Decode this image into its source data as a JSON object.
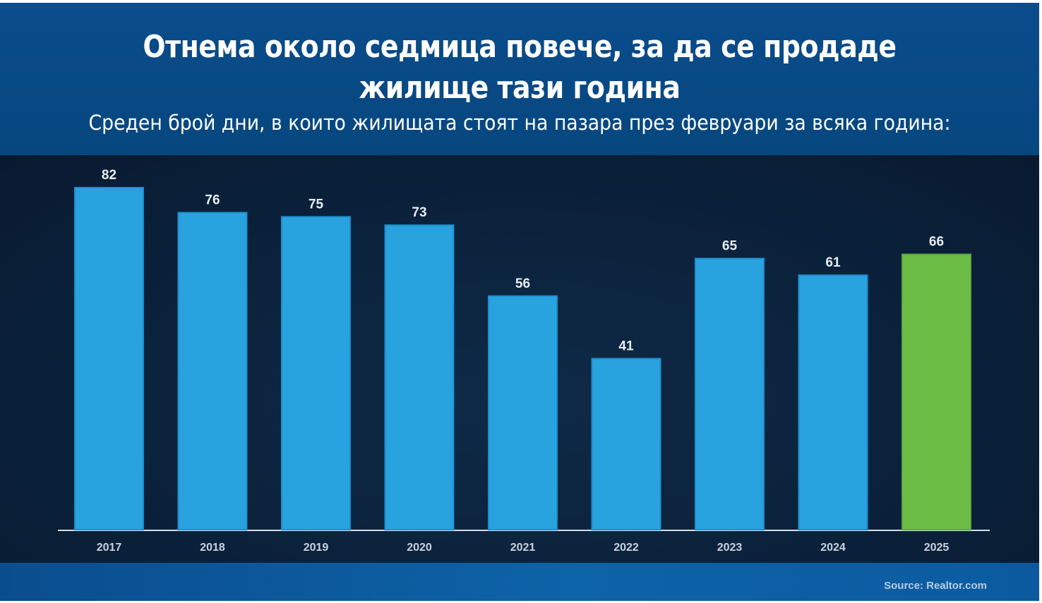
{
  "header": {
    "title_line1": "Отнема около седмица повече, за да се продаде",
    "title_line2": "жилище тази година",
    "subtitle": "Среден брой дни, в които жилищата стоят на пазара през февруари за всяка година:"
  },
  "footer": {
    "source": "Source: Realtor.com"
  },
  "colors": {
    "bar": "#29a3e0",
    "bar_highlight": "#6cbd45",
    "axis": "#d6dde6"
  },
  "chart_data": {
    "type": "bar",
    "categories": [
      "2017",
      "2018",
      "2019",
      "2020",
      "2021",
      "2022",
      "2023",
      "2024",
      "2025"
    ],
    "values": [
      82,
      76,
      75,
      73,
      56,
      41,
      65,
      61,
      66
    ],
    "highlight_category": "2025",
    "title": "Отнема около седмица повече, за да се продаде жилище тази година",
    "subtitle": "Среден брой дни, в които жилищата стоят на пазара през февруари за всяка година:",
    "xlabel": "",
    "ylabel": "",
    "ylim": [
      0,
      82
    ],
    "grid": false,
    "legend": "none",
    "data_labels": true
  }
}
